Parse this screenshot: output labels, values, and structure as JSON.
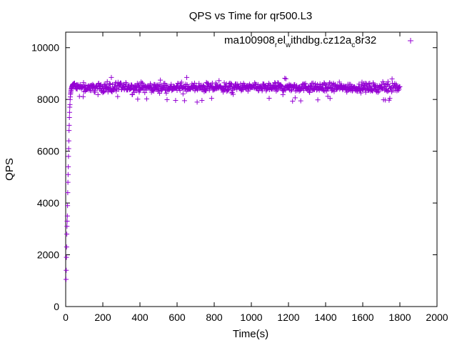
{
  "chart_data": {
    "type": "scatter",
    "title": "QPS vs Time for qr500.L3",
    "xlabel": "Time(s)",
    "ylabel": "QPS",
    "xlim": [
      0,
      2000
    ],
    "ylim": [
      0,
      10600
    ],
    "xticks": [
      0,
      200,
      400,
      600,
      800,
      1000,
      1200,
      1400,
      1600,
      1800,
      2000
    ],
    "yticks": [
      0,
      2000,
      4000,
      6000,
      8000,
      10000
    ],
    "xtick_labels": [
      "0",
      "200",
      "400",
      "600",
      "800",
      "1000",
      "1200",
      "1400",
      "1600",
      "1800",
      "2000"
    ],
    "ytick_labels": [
      "0",
      "2000",
      "4000",
      "6000",
      "8000",
      "10000"
    ],
    "grid": false,
    "legend_position": "top-right",
    "marker": "+",
    "color": "#9400d3",
    "legend": {
      "parts": [
        {
          "text": "ma100908",
          "sub": false
        },
        {
          "text": "r",
          "sub": true
        },
        {
          "text": "el",
          "sub": false
        },
        {
          "text": "w",
          "sub": true
        },
        {
          "text": "ithdbg.cz12a",
          "sub": false
        },
        {
          "text": "c",
          "sub": true
        },
        {
          "text": "8r32",
          "sub": false
        }
      ]
    },
    "series": [
      {
        "ramp": {
          "x": [
            2,
            3,
            4,
            5,
            6,
            7,
            8,
            9,
            10,
            11,
            12,
            13,
            14,
            15,
            16,
            17,
            18,
            19,
            20,
            21,
            22,
            23,
            24,
            25,
            26,
            27,
            28,
            29,
            30,
            31,
            32,
            33,
            34,
            35,
            36,
            37,
            38,
            40,
            42,
            44,
            46,
            48
          ],
          "y": [
            1050,
            1400,
            1900,
            2300,
            2800,
            3100,
            3300,
            3500,
            3900,
            4400,
            4800,
            5100,
            5400,
            5800,
            6100,
            6400,
            6800,
            7000,
            7300,
            7500,
            7700,
            7800,
            8000,
            8100,
            8200,
            8250,
            8300,
            8350,
            8400,
            8420,
            8450,
            8480,
            8500,
            8520,
            8540,
            8560,
            8580,
            8590,
            8600,
            8610,
            8620,
            8630
          ]
        },
        "steady": {
          "x_start": 50,
          "x_end": 1800,
          "x_step": 2,
          "mean": 8460,
          "spread": 160,
          "min": 7850,
          "max": 8850
        }
      }
    ]
  }
}
